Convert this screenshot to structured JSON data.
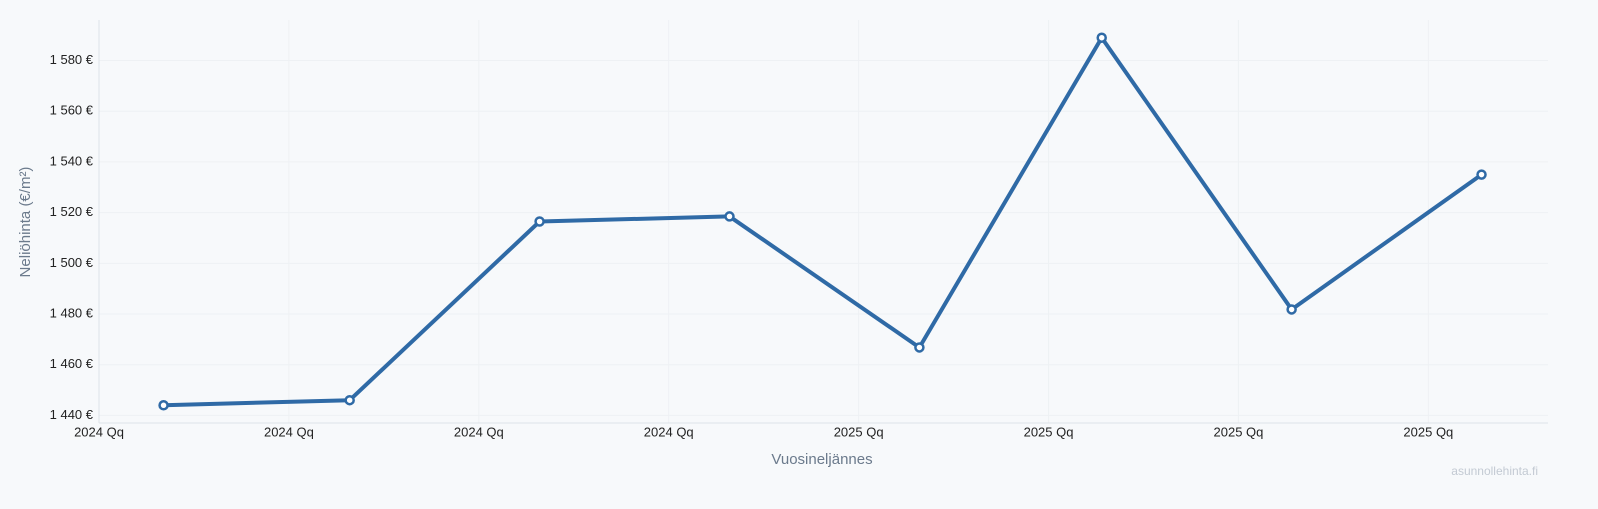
{
  "chart_data": {
    "type": "line",
    "y_label": "Neliöhinta (€/m²)",
    "x_label": "Vuosineljännes",
    "watermark": "asunnollehinta.fi",
    "x": [
      0.34,
      1.32,
      2.32,
      3.32,
      4.32,
      5.28,
      6.28,
      7.28
    ],
    "series": [
      {
        "name": null,
        "color": "#2f6aa6",
        "values": [
          1444,
          1446,
          1516.5,
          1518.5,
          1466.8,
          1589,
          1481.8,
          1535
        ]
      }
    ],
    "xlim": [
      0,
      7.63
    ],
    "xticks": [
      {
        "value": 0,
        "label": "2024 Qq"
      },
      {
        "value": 1,
        "label": "2024 Qq"
      },
      {
        "value": 2,
        "label": "2024 Qq"
      },
      {
        "value": 3,
        "label": "2024 Qq"
      },
      {
        "value": 4,
        "label": "2025 Qq"
      },
      {
        "value": 5,
        "label": "2025 Qq"
      },
      {
        "value": 6,
        "label": "2025 Qq"
      },
      {
        "value": 7,
        "label": "2025 Qq"
      }
    ],
    "ylim": [
      1437,
      1596
    ],
    "yticks": [
      {
        "value": 1440,
        "label": "1 440 €"
      },
      {
        "value": 1460,
        "label": "1 460 €"
      },
      {
        "value": 1480,
        "label": "1 480 €"
      },
      {
        "value": 1500,
        "label": "1 500 €"
      },
      {
        "value": 1520,
        "label": "1 520 €"
      },
      {
        "value": 1540,
        "label": "1 540 €"
      },
      {
        "value": 1560,
        "label": "1 560 €"
      },
      {
        "value": 1580,
        "label": "1 580 €"
      }
    ],
    "grid": true
  }
}
